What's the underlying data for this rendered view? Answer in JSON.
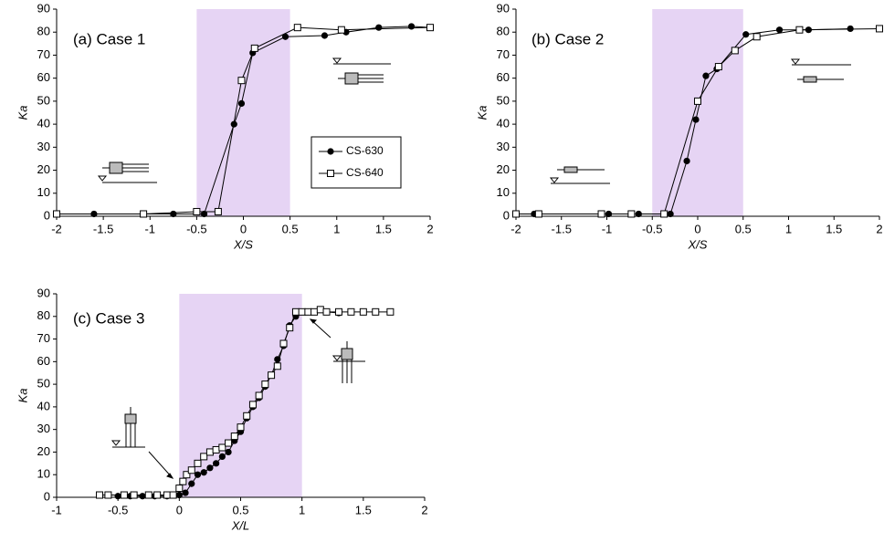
{
  "chart_data": [
    {
      "type": "line",
      "annotation": "(a) Case 1",
      "x_label": "X/S",
      "y_label": "Ka",
      "xlim": [
        -2,
        2
      ],
      "ylim": [
        0,
        90
      ],
      "xticks": [
        -2,
        -1.5,
        -1,
        -0.5,
        0,
        0.5,
        1,
        1.5,
        2
      ],
      "yticks": [
        0,
        10,
        20,
        30,
        40,
        50,
        60,
        70,
        80,
        90
      ],
      "shade": [
        -0.5,
        0.5
      ],
      "shade_color": "#e6d4f4",
      "legend": "right",
      "series": [
        {
          "name": "CS-630",
          "marker": "circle",
          "color": "#000000",
          "x": [
            -2,
            -1.6,
            -1.07,
            -0.75,
            -0.42,
            -0.1,
            -0.02,
            0.1,
            0.45,
            0.87,
            1.1,
            1.45,
            1.8,
            2
          ],
          "values": [
            1,
            1,
            1,
            1,
            1,
            40,
            49,
            71,
            78,
            78.5,
            80,
            82,
            82.5,
            82
          ]
        },
        {
          "name": "CS-640",
          "marker": "square",
          "color": "#000000",
          "x": [
            -2,
            -1.07,
            -0.5,
            -0.27,
            -0.02,
            0.12,
            0.58,
            1.05,
            2
          ],
          "values": [
            1,
            1,
            2,
            2,
            59,
            73,
            82,
            81,
            82
          ]
        }
      ]
    },
    {
      "type": "line",
      "annotation": "(b) Case 2",
      "x_label": "X/S",
      "y_label": "Ka",
      "xlim": [
        -2,
        2
      ],
      "ylim": [
        0,
        90
      ],
      "xticks": [
        -2,
        -1.5,
        -1,
        -0.5,
        0,
        0.5,
        1,
        1.5,
        2
      ],
      "yticks": [
        0,
        10,
        20,
        30,
        40,
        50,
        60,
        70,
        80,
        90
      ],
      "shade": [
        -0.5,
        0.5
      ],
      "shade_color": "#e6d4f4",
      "series": [
        {
          "marker": "circle",
          "color": "#000000",
          "x": [
            -2,
            -1.8,
            -0.98,
            -0.65,
            -0.3,
            -0.12,
            -0.02,
            0.09,
            0.21,
            0.53,
            0.9,
            1.22,
            1.68
          ],
          "values": [
            1,
            1,
            1,
            1,
            1,
            24,
            42,
            61,
            64,
            79,
            81,
            81,
            81.5
          ]
        },
        {
          "marker": "square",
          "color": "#000000",
          "x": [
            -2,
            -1.75,
            -1.06,
            -0.73,
            -0.37,
            0,
            0.23,
            0.41,
            0.65,
            1.12,
            2
          ],
          "values": [
            1,
            1,
            1,
            1,
            1,
            50,
            65,
            72,
            78,
            81,
            81.5
          ]
        }
      ]
    },
    {
      "type": "line",
      "annotation": "(c) Case 3",
      "x_label": "X/L",
      "y_label": "Ka",
      "xlim": [
        -1,
        2
      ],
      "ylim": [
        0,
        90
      ],
      "xticks": [
        -1,
        -0.5,
        0,
        0.5,
        1,
        1.5,
        2
      ],
      "yticks": [
        0,
        10,
        20,
        30,
        40,
        50,
        60,
        70,
        80,
        90
      ],
      "shade": [
        0,
        1
      ],
      "shade_color": "#e6d4f4",
      "series": [
        {
          "marker": "circle",
          "color": "#000000",
          "x": [
            -0.5,
            -0.4,
            -0.3,
            -0.2,
            -0.1,
            0,
            0.05,
            0.1,
            0.15,
            0.2,
            0.25,
            0.3,
            0.35,
            0.4,
            0.45,
            0.5,
            0.55,
            0.6,
            0.65,
            0.7,
            0.75,
            0.8,
            0.85,
            0.9,
            0.95,
            1,
            1.1,
            1.2,
            1.3
          ],
          "values": [
            0.5,
            0.5,
            0.5,
            0.5,
            0.5,
            1,
            2,
            6,
            10,
            11,
            13,
            15,
            18,
            20,
            25,
            29,
            35,
            40,
            44,
            49,
            54,
            61,
            67,
            76,
            80,
            82,
            82,
            82,
            81.5
          ]
        },
        {
          "marker": "square",
          "color": "#000000",
          "x": [
            -0.65,
            -0.58,
            -0.45,
            -0.37,
            -0.25,
            -0.18,
            -0.1,
            -0.05,
            0,
            0.03,
            0.06,
            0.1,
            0.15,
            0.2,
            0.25,
            0.3,
            0.35,
            0.4,
            0.45,
            0.5,
            0.55,
            0.6,
            0.65,
            0.7,
            0.75,
            0.8,
            0.85,
            0.9,
            0.95,
            1,
            1.05,
            1.1,
            1.15,
            1.2,
            1.3,
            1.4,
            1.5,
            1.6,
            1.72
          ],
          "values": [
            1,
            1,
            1,
            1,
            1,
            1,
            1,
            1,
            4,
            7,
            10,
            12,
            15,
            18,
            20,
            21,
            22,
            24,
            27,
            31,
            36,
            41,
            45,
            50,
            54,
            58,
            68,
            75,
            82,
            82,
            82,
            82,
            83,
            82,
            82,
            82,
            82,
            82,
            82
          ]
        }
      ]
    }
  ]
}
